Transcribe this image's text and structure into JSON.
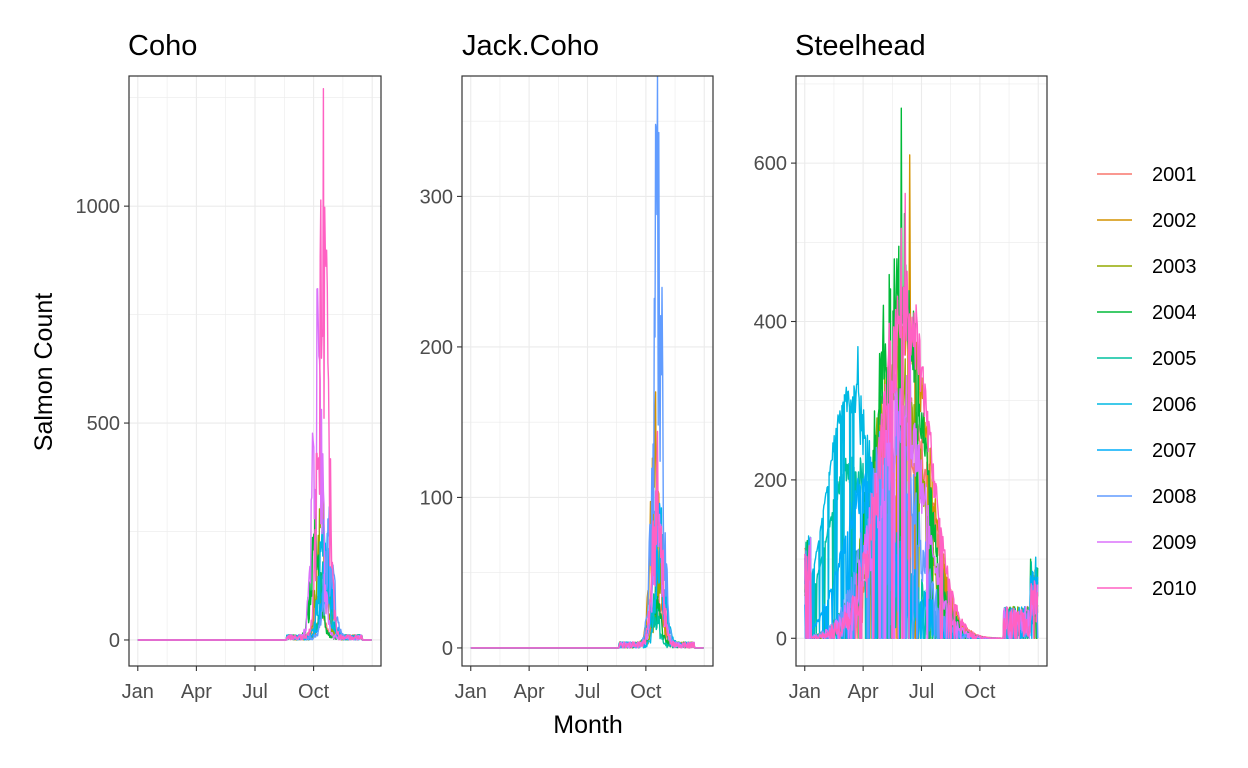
{
  "chart_data": {
    "type": "line",
    "xlabel": "Month",
    "ylabel": "Salmon Count",
    "legend_position": "right",
    "grid": true,
    "x_ticks": [
      "Jan",
      "Apr",
      "Jul",
      "Oct"
    ],
    "series": [
      {
        "name": "2001",
        "color": "#F8766D"
      },
      {
        "name": "2002",
        "color": "#D39200"
      },
      {
        "name": "2003",
        "color": "#93AA00"
      },
      {
        "name": "2004",
        "color": "#00BA38"
      },
      {
        "name": "2005",
        "color": "#00C19F"
      },
      {
        "name": "2006",
        "color": "#00B9E3"
      },
      {
        "name": "2007",
        "color": "#00ADFA"
      },
      {
        "name": "2008",
        "color": "#619CFF"
      },
      {
        "name": "2009",
        "color": "#DB72FB"
      },
      {
        "name": "2010",
        "color": "#FF61C3"
      }
    ],
    "panels": [
      {
        "title": "Coho",
        "ylim": [
          -60,
          1300
        ],
        "y_ticks": [
          0,
          500,
          1000
        ],
        "y_tick_labels": [
          "0",
          "500",
          "1000"
        ],
        "peaks": [
          {
            "series": "2001",
            "month": 9.3,
            "value": 120
          },
          {
            "series": "2002",
            "month": 9.6,
            "value": 170
          },
          {
            "series": "2003",
            "month": 9.4,
            "value": 330
          },
          {
            "series": "2004",
            "month": 9.1,
            "value": 310
          },
          {
            "series": "2005",
            "month": 9.6,
            "value": 200
          },
          {
            "series": "2006",
            "month": 9.5,
            "value": 270
          },
          {
            "series": "2007",
            "month": 9.7,
            "value": 240
          },
          {
            "series": "2008",
            "month": 9.8,
            "value": 300
          },
          {
            "series": "2009",
            "month": 9.2,
            "value": 800
          },
          {
            "series": "2010",
            "month": 9.5,
            "value": 1270
          }
        ]
      },
      {
        "title": "Jack.Coho",
        "ylim": [
          -12,
          380
        ],
        "y_ticks": [
          0,
          100,
          200,
          300
        ],
        "y_tick_labels": [
          "0",
          "100",
          "200",
          "300"
        ],
        "peaks": [
          {
            "series": "2001",
            "month": 9.6,
            "value": 45
          },
          {
            "series": "2002",
            "month": 9.5,
            "value": 170
          },
          {
            "series": "2003",
            "month": 9.7,
            "value": 60
          },
          {
            "series": "2004",
            "month": 9.5,
            "value": 45
          },
          {
            "series": "2005",
            "month": 9.4,
            "value": 35
          },
          {
            "series": "2006",
            "month": 9.8,
            "value": 90
          },
          {
            "series": "2007",
            "month": 9.6,
            "value": 110
          },
          {
            "series": "2008",
            "month": 9.6,
            "value": 377
          },
          {
            "series": "2009",
            "month": 9.6,
            "value": 120
          },
          {
            "series": "2010",
            "month": 9.6,
            "value": 140
          }
        ]
      },
      {
        "title": "Steelhead",
        "ylim": [
          -35,
          710
        ],
        "y_ticks": [
          0,
          200,
          400,
          600
        ],
        "y_tick_labels": [
          "0",
          "200",
          "400",
          "600"
        ],
        "peaks": [
          {
            "series": "2001",
            "month": 5.5,
            "value": 380
          },
          {
            "series": "2002",
            "month": 5.2,
            "value": 645
          },
          {
            "series": "2003",
            "month": 4.8,
            "value": 500
          },
          {
            "series": "2004",
            "month": 4.9,
            "value": 705
          },
          {
            "series": "2005",
            "month": 2.2,
            "value": 350
          },
          {
            "series": "2006",
            "month": 2.2,
            "value": 520
          },
          {
            "series": "2007",
            "month": 3.0,
            "value": 280
          },
          {
            "series": "2008",
            "month": 4.5,
            "value": 330
          },
          {
            "series": "2009",
            "month": 5.0,
            "value": 420
          },
          {
            "series": "2010",
            "month": 5.3,
            "value": 650
          }
        ]
      }
    ]
  }
}
